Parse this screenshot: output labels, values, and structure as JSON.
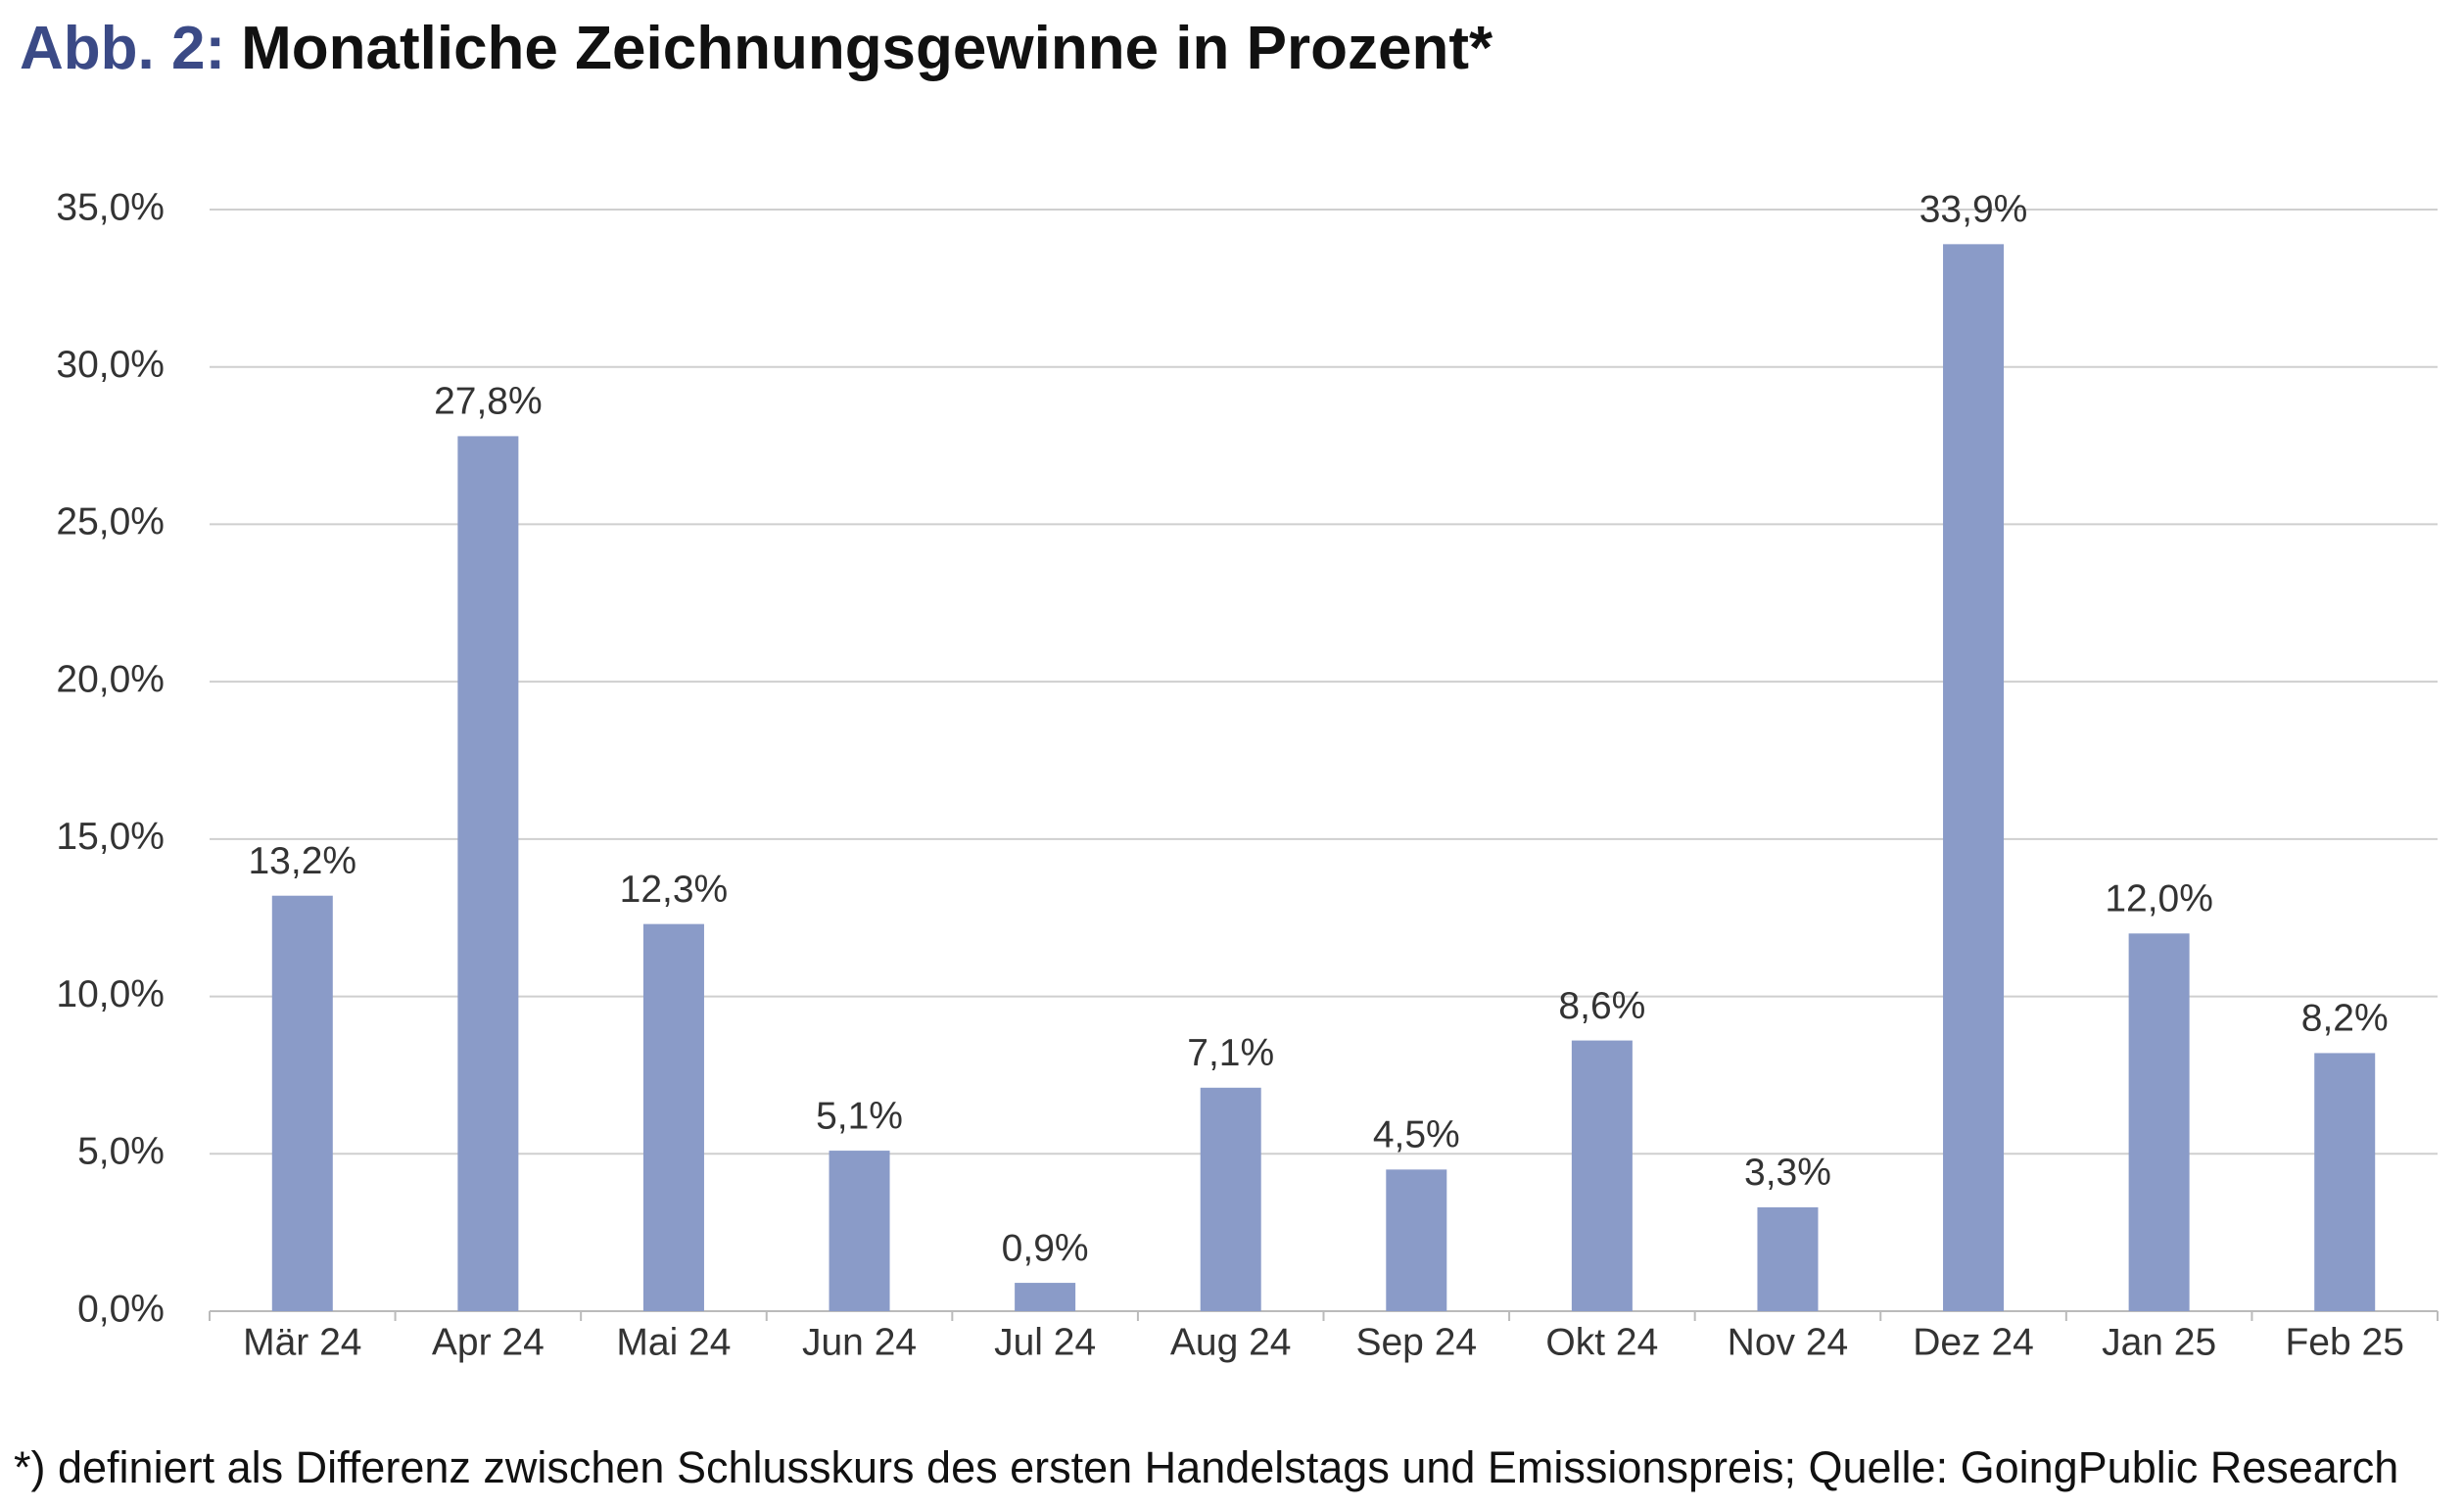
{
  "chart_data": {
    "type": "bar",
    "figure_label": "Abb. 2:",
    "title": "Monatliche Zeichnungsgewinne in Prozent*",
    "note": "*) definiert als Differenz zwischen Schlusskurs des ersten Handelstags und Emissionspreis; Quelle: GoingPublic Research",
    "categories": [
      "Mär 24",
      "Apr 24",
      "Mai 24",
      "Jun 24",
      "Jul 24",
      "Aug 24",
      "Sep 24",
      "Okt 24",
      "Nov 24",
      "Dez 24",
      "Jan 25",
      "Feb 25"
    ],
    "values": [
      13.2,
      27.8,
      12.3,
      5.1,
      0.9,
      7.1,
      4.5,
      8.6,
      3.3,
      33.9,
      12.0,
      8.2
    ],
    "value_labels": [
      "13,2%",
      "27,8%",
      "12,3%",
      "5,1%",
      "0,9%",
      "7,1%",
      "4,5%",
      "8,6%",
      "3,3%",
      "33,9%",
      "12,0%",
      "8,2%"
    ],
    "color": "#8a9bc8",
    "ylim": [
      0,
      35
    ],
    "yticks": [
      {
        "value": 0,
        "label": "0,0%"
      },
      {
        "value": 5,
        "label": "5,0%"
      },
      {
        "value": 10,
        "label": "10,0%"
      },
      {
        "value": 15,
        "label": "15,0%"
      },
      {
        "value": 20,
        "label": "20,0%"
      },
      {
        "value": 25,
        "label": "25,0%"
      },
      {
        "value": 30,
        "label": "30,0%"
      },
      {
        "value": 35,
        "label": "35,0%"
      }
    ],
    "grid": true
  }
}
